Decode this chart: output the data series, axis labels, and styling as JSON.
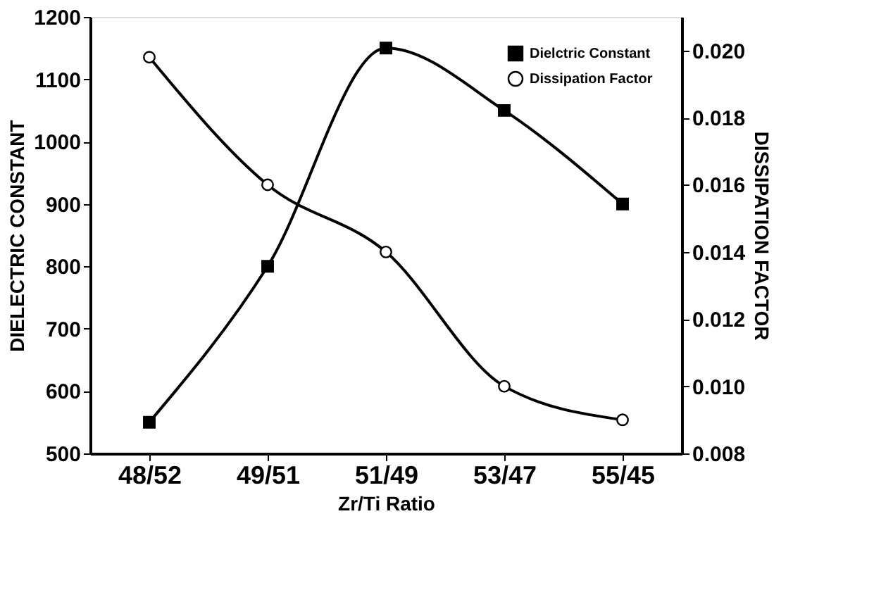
{
  "chart_data": {
    "type": "line",
    "xlabel": "Zr/Ti Ratio",
    "ylabel": "DIELECTRIC CONSTANT",
    "y2label": "DISSIPATION FACTOR",
    "categories": [
      "48/52",
      "49/51",
      "51/49",
      "53/47",
      "55/45"
    ],
    "series": [
      {
        "name": "Dielctric Constant",
        "color": "#000000",
        "marker": "square",
        "values": [
          550,
          800,
          1150,
          1050,
          900
        ]
      },
      {
        "name": "Dissipation Factor",
        "color": "#000000",
        "marker": "circle",
        "axis": "y2",
        "values": [
          0.0198,
          0.016,
          0.014,
          0.01,
          0.009
        ]
      }
    ],
    "ylim": [
      500,
      1200
    ],
    "yticks": [
      500,
      600,
      700,
      800,
      900,
      1000,
      1100,
      1200
    ],
    "y2lim": [
      0.008,
      0.021
    ],
    "y2ticks": [
      {
        "value": 0.008,
        "label": "0.008"
      },
      {
        "value": 0.01,
        "label": "0.010"
      },
      {
        "value": 0.012,
        "label": "0.012"
      },
      {
        "value": 0.014,
        "label": "0.014"
      },
      {
        "value": 0.016,
        "label": "0.016"
      },
      {
        "value": 0.018,
        "label": "0.018"
      },
      {
        "value": 0.02,
        "label": "0.020"
      }
    ],
    "grid": false,
    "legend": "top right",
    "line_style": "solid"
  }
}
